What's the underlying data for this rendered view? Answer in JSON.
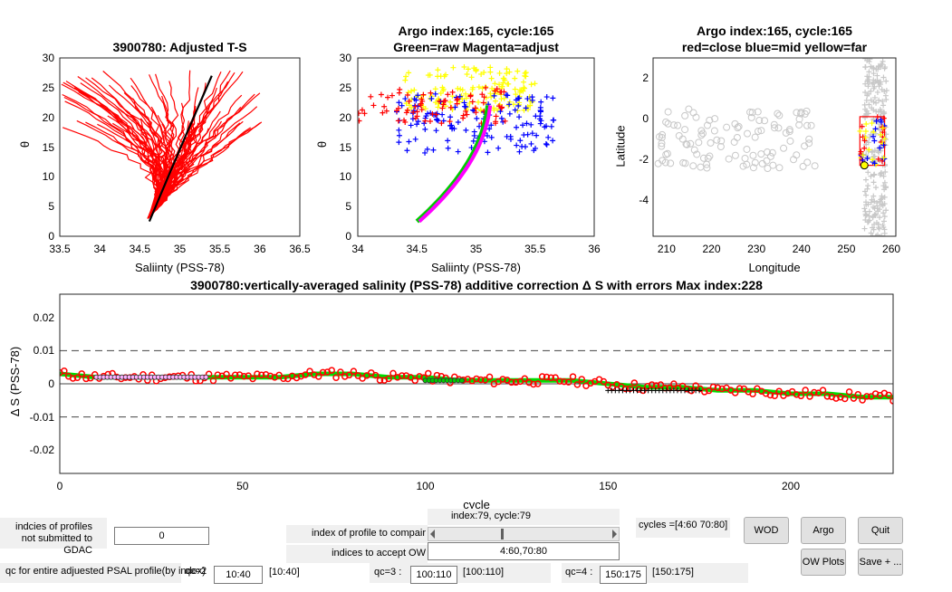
{
  "plots": {
    "ts_adjusted": {
      "title": "3900780: Adjusted T-S",
      "xlabel": "Saliinty (PSS-78)",
      "ylabel": "θ",
      "xticks": [
        "33.5",
        "34",
        "34.5",
        "35",
        "35.5",
        "36",
        "36.5"
      ],
      "yticks": [
        "0",
        "5",
        "10",
        "15",
        "20",
        "25",
        "30"
      ]
    },
    "ts_raw": {
      "title1": "Argo index:165, cycle:165",
      "title2": "Green=raw Magenta=adjust",
      "xlabel": "Saliinty (PSS-78)",
      "ylabel": "θ",
      "xticks": [
        "34",
        "34.5",
        "35",
        "35.5",
        "36"
      ],
      "yticks": [
        "0",
        "5",
        "10",
        "15",
        "20",
        "25",
        "30"
      ]
    },
    "map": {
      "title1": "Argo index:165, cycle:165",
      "title2": "red=close blue=mid yellow=far",
      "xlabel": "Longitude",
      "ylabel": "Latitude",
      "xticks": [
        "210",
        "220",
        "230",
        "240",
        "250",
        "260"
      ],
      "yticks": [
        "2",
        "0",
        "-2",
        "-4"
      ]
    },
    "correction": {
      "title": "3900780:vertically-averaged salinity (PSS-78) additive correction Δ S with errors Max index:228",
      "xlabel": "cycle",
      "ylabel": "Δ S (PSS-78)",
      "xticks": [
        "0",
        "50",
        "100",
        "150",
        "200"
      ],
      "yticks": [
        "0.02",
        "0.01",
        "0",
        "-0.01",
        "-0.02"
      ]
    }
  },
  "chart_data": [
    {
      "type": "line",
      "title": "3900780: Adjusted T-S",
      "xlabel": "Saliinty (PSS-78)",
      "ylabel": "θ",
      "xlim": [
        33.5,
        36.5
      ],
      "ylim": [
        0,
        30
      ]
    },
    {
      "type": "scatter",
      "title": "Argo index:165, cycle:165 Green=raw Magenta=adjust",
      "xlabel": "Saliinty (PSS-78)",
      "ylabel": "θ",
      "xlim": [
        34,
        36
      ],
      "ylim": [
        0,
        30
      ]
    },
    {
      "type": "scatter",
      "title": "Argo index:165, cycle:165 red=close blue=mid yellow=far",
      "xlabel": "Longitude",
      "ylabel": "Latitude",
      "xlim": [
        207,
        261
      ],
      "ylim": [
        -5.8,
        3
      ]
    },
    {
      "type": "line",
      "title": "3900780:vertically-averaged salinity (PSS-78) additive correction Δ S with errors Max index:228",
      "xlabel": "cycle",
      "ylabel": "Δ S (PSS-78)",
      "xlim": [
        0,
        228
      ],
      "ylim": [
        -0.027,
        0.027
      ],
      "series": [
        {
          "values_x": [
            0,
            10,
            20,
            30,
            40,
            50,
            60,
            70,
            80,
            90,
            100,
            110,
            120,
            130,
            140,
            150,
            160,
            170,
            180,
            190,
            200,
            210,
            220,
            228
          ],
          "values_y": [
            0.003,
            0.002,
            0.002,
            0.002,
            0.002,
            0.002,
            0.002,
            0.003,
            0.003,
            0.002,
            0.002,
            0.001,
            0.001,
            0.001,
            0.001,
            0.0,
            -0.001,
            -0.001,
            -0.002,
            -0.002,
            -0.003,
            -0.003,
            -0.004,
            -0.004
          ]
        }
      ]
    }
  ],
  "controls": {
    "not_submitted_label": "indcies of profiles not submitted to GDAC",
    "not_submitted_value": "0",
    "profile_info": "index:79, cycle:79",
    "compair_label": "index of profile to compair",
    "accept_label": "indices to accept OW",
    "accept_value": "4:60,70:80",
    "cycles_label": "cycles =[4:60 70:80]",
    "qc_label": "qc for entire adjuested PSAL profile(by index)",
    "qc2_label": "qc=2",
    "qc2_value": "10:40",
    "qc2_range": "[10:40]",
    "qc3_label": "qc=3 :",
    "qc3_value": "100:110",
    "qc3_range": "[100:110]",
    "qc4_label": "qc=4 :",
    "qc4_value": "150:175",
    "qc4_range": "[150:175]",
    "wod_btn": "WOD",
    "argo_btn": "Argo",
    "quit_btn": "Quit",
    "owplots_btn": "OW Plots",
    "save_btn": "Save + ..."
  }
}
